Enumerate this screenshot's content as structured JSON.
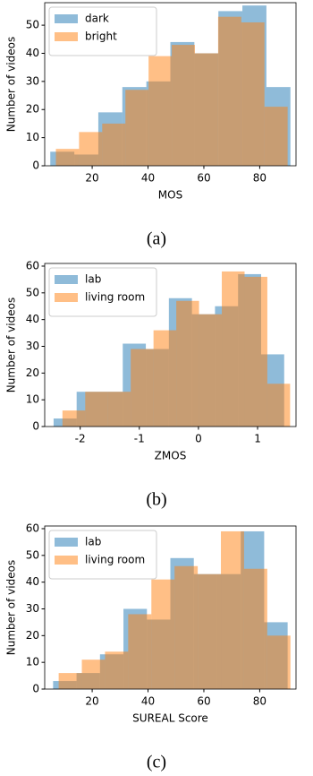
{
  "chart_data": [
    {
      "type": "histogram",
      "xlabel": "MOS",
      "ylabel": "Number of videos",
      "caption": "(a)",
      "xlim": [
        3,
        93
      ],
      "xticks": [
        20,
        40,
        60,
        80
      ],
      "ylim": [
        0,
        58
      ],
      "yticks": [
        0,
        10,
        20,
        30,
        40,
        50
      ],
      "legend": "upper left",
      "alpha": 0.5,
      "series": [
        {
          "name": "dark",
          "color": "#1f77b4",
          "bins": [
            5,
            13.6,
            22.2,
            30.8,
            39.4,
            48,
            56.6,
            65.2,
            73.8,
            82.4,
            91
          ],
          "values": [
            5,
            4,
            19,
            28,
            30,
            44,
            40,
            55,
            57,
            28
          ]
        },
        {
          "name": "bright",
          "color": "#ff7f0e",
          "bins": [
            7,
            15.3,
            23.6,
            31.9,
            40.2,
            48.5,
            56.8,
            65.1,
            73.4,
            81.7,
            90
          ],
          "values": [
            6,
            12,
            15,
            27,
            39,
            43,
            40,
            53,
            51,
            21
          ]
        }
      ]
    },
    {
      "type": "histogram",
      "xlabel": "ZMOS",
      "ylabel": "Number of videos",
      "caption": "(b)",
      "xlim": [
        -2.6,
        1.65
      ],
      "xticks": [
        -2,
        -1,
        0,
        1
      ],
      "ylim": [
        0,
        61
      ],
      "yticks": [
        0,
        10,
        20,
        30,
        40,
        50,
        60
      ],
      "legend": "upper left",
      "alpha": 0.5,
      "series": [
        {
          "name": "lab",
          "color": "#1f77b4",
          "bins": [
            -2.45,
            -2.06,
            -1.67,
            -1.28,
            -0.89,
            -0.5,
            -0.11,
            0.28,
            0.67,
            1.06,
            1.45
          ],
          "values": [
            3,
            13,
            13,
            31,
            29,
            48,
            42,
            45,
            57,
            27
          ]
        },
        {
          "name": "living room",
          "color": "#ff7f0e",
          "bins": [
            -2.3,
            -1.915,
            -1.53,
            -1.145,
            -0.76,
            -0.375,
            0.01,
            0.395,
            0.78,
            1.165,
            1.55
          ],
          "values": [
            6,
            13,
            13,
            29,
            36,
            47,
            42,
            58,
            56,
            16
          ]
        }
      ]
    },
    {
      "type": "histogram",
      "xlabel": "SUREAL Score",
      "ylabel": "Number of videos",
      "caption": "(c)",
      "xlim": [
        3,
        93
      ],
      "xticks": [
        20,
        40,
        60,
        80
      ],
      "ylim": [
        0,
        61
      ],
      "yticks": [
        0,
        10,
        20,
        30,
        40,
        50,
        60
      ],
      "legend": "upper left",
      "alpha": 0.5,
      "series": [
        {
          "name": "lab",
          "color": "#1f77b4",
          "bins": [
            6,
            14.4,
            22.8,
            31.2,
            39.6,
            48,
            56.4,
            64.8,
            73.2,
            81.6,
            90
          ],
          "values": [
            3,
            6,
            13,
            30,
            26,
            49,
            43,
            43,
            59,
            25
          ]
        },
        {
          "name": "living room",
          "color": "#ff7f0e",
          "bins": [
            8,
            16.3,
            24.6,
            32.9,
            41.2,
            49.5,
            57.8,
            66.1,
            74.4,
            82.7,
            91
          ],
          "values": [
            6,
            11,
            14,
            28,
            41,
            46,
            43,
            59,
            45,
            20
          ]
        }
      ]
    }
  ]
}
